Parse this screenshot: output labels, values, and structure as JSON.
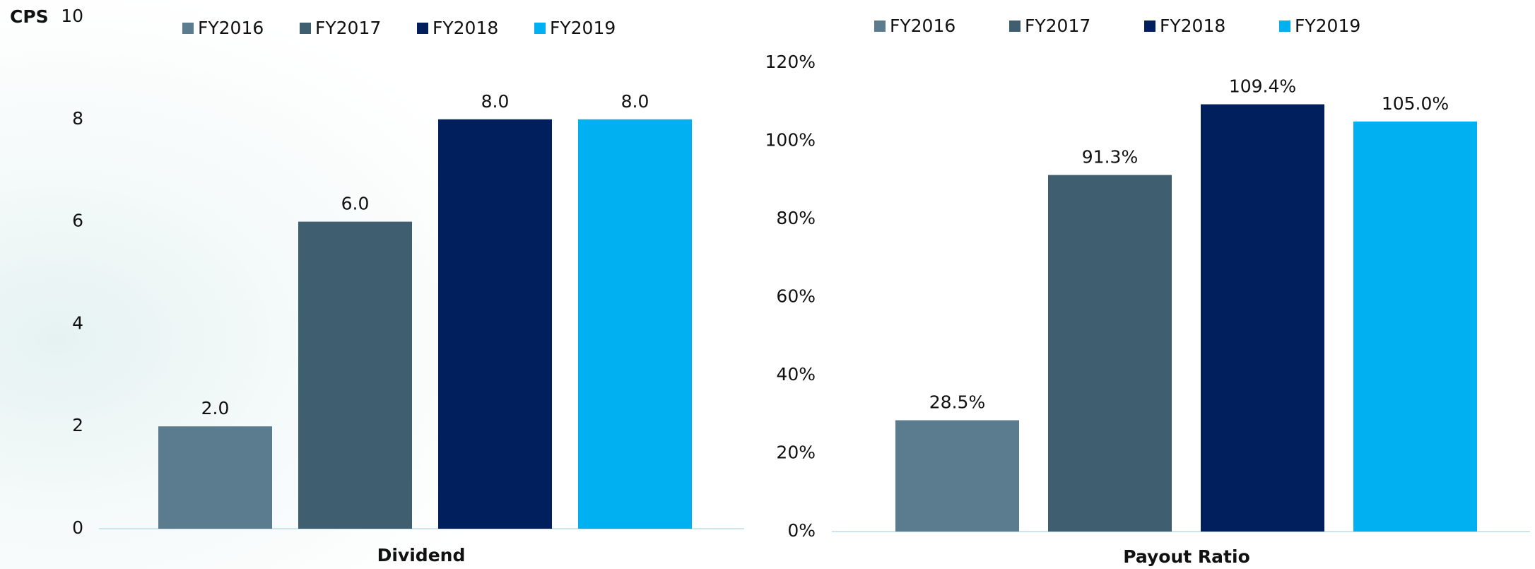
{
  "chart_data": [
    {
      "type": "bar",
      "ylabel": "CPS",
      "categories": [
        "Dividend"
      ],
      "ylim": [
        0,
        10
      ],
      "yticks": [
        0,
        2,
        4,
        6,
        8,
        10
      ],
      "series": [
        {
          "name": "FY2016",
          "color": "#5b7c8f",
          "values": [
            2.0
          ],
          "value_labels": [
            "2.0"
          ]
        },
        {
          "name": "FY2017",
          "color": "#3f5f70",
          "values": [
            6.0
          ],
          "value_labels": [
            "6.0"
          ]
        },
        {
          "name": "FY2018",
          "color": "#001f5c",
          "values": [
            8.0
          ],
          "value_labels": [
            "8.0"
          ]
        },
        {
          "name": "FY2019",
          "color": "#00b0f0",
          "values": [
            8.0
          ],
          "value_labels": [
            "8.0"
          ]
        }
      ]
    },
    {
      "type": "bar",
      "categories": [
        "Payout Ratio"
      ],
      "ylim": [
        0,
        120
      ],
      "yticks": [
        {
          "value": 0,
          "label": "0%"
        },
        {
          "value": 20,
          "label": "20%"
        },
        {
          "value": 40,
          "label": "40%"
        },
        {
          "value": 60,
          "label": "60%"
        },
        {
          "value": 80,
          "label": "80%"
        },
        {
          "value": 100,
          "label": "100%"
        },
        {
          "value": 120,
          "label": "120%"
        }
      ],
      "series": [
        {
          "name": "FY2016",
          "color": "#5b7c8f",
          "values": [
            28.5
          ],
          "value_labels": [
            "28.5%"
          ]
        },
        {
          "name": "FY2017",
          "color": "#3f5f70",
          "values": [
            91.3
          ],
          "value_labels": [
            "91.3%"
          ]
        },
        {
          "name": "FY2018",
          "color": "#001f5c",
          "values": [
            109.4
          ],
          "value_labels": [
            "109.4%"
          ]
        },
        {
          "name": "FY2019",
          "color": "#00b0f0",
          "values": [
            105.0
          ],
          "value_labels": [
            "105.0%"
          ]
        }
      ]
    }
  ]
}
